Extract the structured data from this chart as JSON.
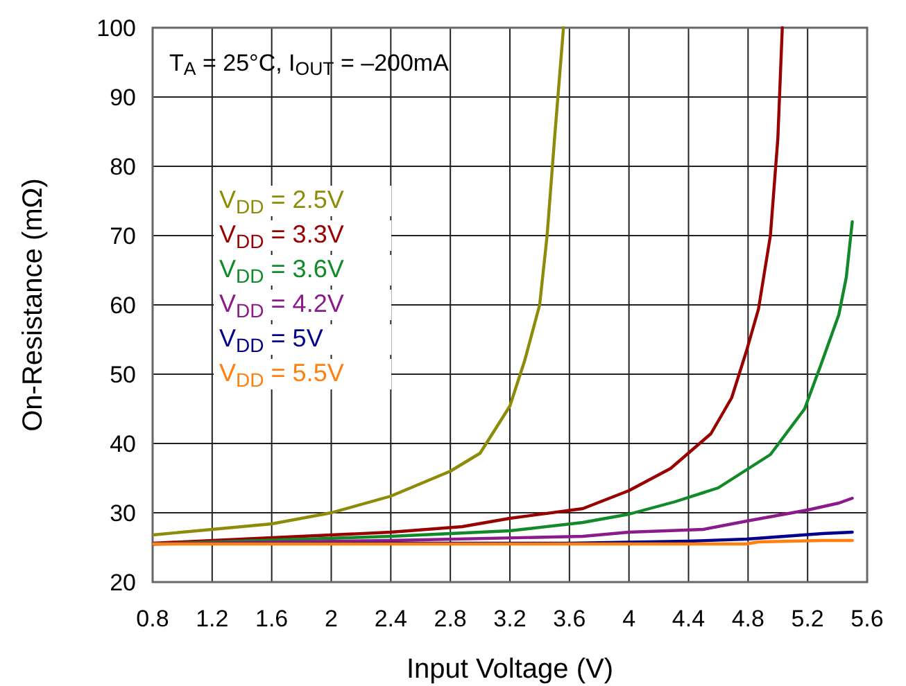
{
  "chart_data": {
    "type": "line",
    "xlabel": "Input Voltage (V)",
    "ylabel": "On-Resistance (mΩ)",
    "annotations": [
      "T$_{A}$ = 25°C, I$_{OUT}$ = –200mA"
    ],
    "xlim": [
      0.8,
      5.6
    ],
    "xticks": [
      0.8,
      1.2,
      1.6,
      2,
      2.4,
      2.8,
      3.2,
      3.6,
      4,
      4.4,
      4.8,
      5.2,
      5.6
    ],
    "ylim": [
      20,
      100
    ],
    "yticks": [
      20,
      30,
      40,
      50,
      60,
      70,
      80,
      90,
      100
    ],
    "grid": true,
    "legend": "left",
    "marker": "none",
    "line_style": "solid",
    "series": [
      {
        "name": "V$_{DD}$ = 2.5V",
        "color": "#8c8c0a",
        "x": [
          0.8,
          1.2,
          1.6,
          2.0,
          2.4,
          2.8,
          3.0,
          3.2,
          3.3,
          3.4,
          3.45,
          3.5,
          3.56
        ],
        "values": [
          26.8,
          27.6,
          28.4,
          30,
          32.4,
          36,
          38.6,
          45.4,
          52,
          60,
          70,
          84,
          100
        ]
      },
      {
        "name": "V$_{DD}$ = 3.3V",
        "color": "#990000",
        "x": [
          0.8,
          1.6,
          2.0,
          2.4,
          2.88,
          3.2,
          3.69,
          4.0,
          4.28,
          4.55,
          4.69,
          4.79,
          4.87,
          4.95,
          5.0,
          5.03
        ],
        "values": [
          25.6,
          26.4,
          26.8,
          27.2,
          28,
          29.2,
          30.6,
          33.2,
          36.4,
          41.4,
          46.6,
          53.4,
          59.4,
          70,
          84,
          100
        ]
      },
      {
        "name": "V$_{DD}$ = 3.6V",
        "color": "#138a2a",
        "x": [
          0.8,
          2.4,
          3.2,
          3.69,
          4.0,
          4.31,
          4.6,
          4.95,
          5.18,
          5.29,
          5.41,
          5.46,
          5.5
        ],
        "values": [
          25.5,
          26.6,
          27.4,
          28.6,
          29.8,
          31.6,
          33.6,
          38.4,
          45,
          51.4,
          58.6,
          64,
          72
        ]
      },
      {
        "name": "V$_{DD}$ = 4.2V",
        "color": "#8b1a8b",
        "x": [
          0.8,
          2.4,
          3.69,
          4.0,
          4.5,
          4.79,
          5.2,
          5.41,
          5.5
        ],
        "values": [
          25.5,
          26,
          26.6,
          27.2,
          27.6,
          28.8,
          30.4,
          31.4,
          32.1
        ]
      },
      {
        "name": "V$_{DD}$ = 5V",
        "color": "#00008b",
        "x": [
          0.8,
          2.4,
          3.6,
          4.4,
          4.79,
          5.3,
          5.5
        ],
        "values": [
          25.5,
          25.6,
          25.6,
          25.9,
          26.2,
          27,
          27.2
        ]
      },
      {
        "name": "V$_{DD}$ = 5.5V",
        "color": "#ff7f0f",
        "x": [
          0.8,
          2.4,
          3.6,
          4.79,
          4.87,
          5.3,
          5.5
        ],
        "values": [
          25.5,
          25.5,
          25.5,
          25.5,
          25.8,
          26,
          26
        ]
      }
    ]
  }
}
